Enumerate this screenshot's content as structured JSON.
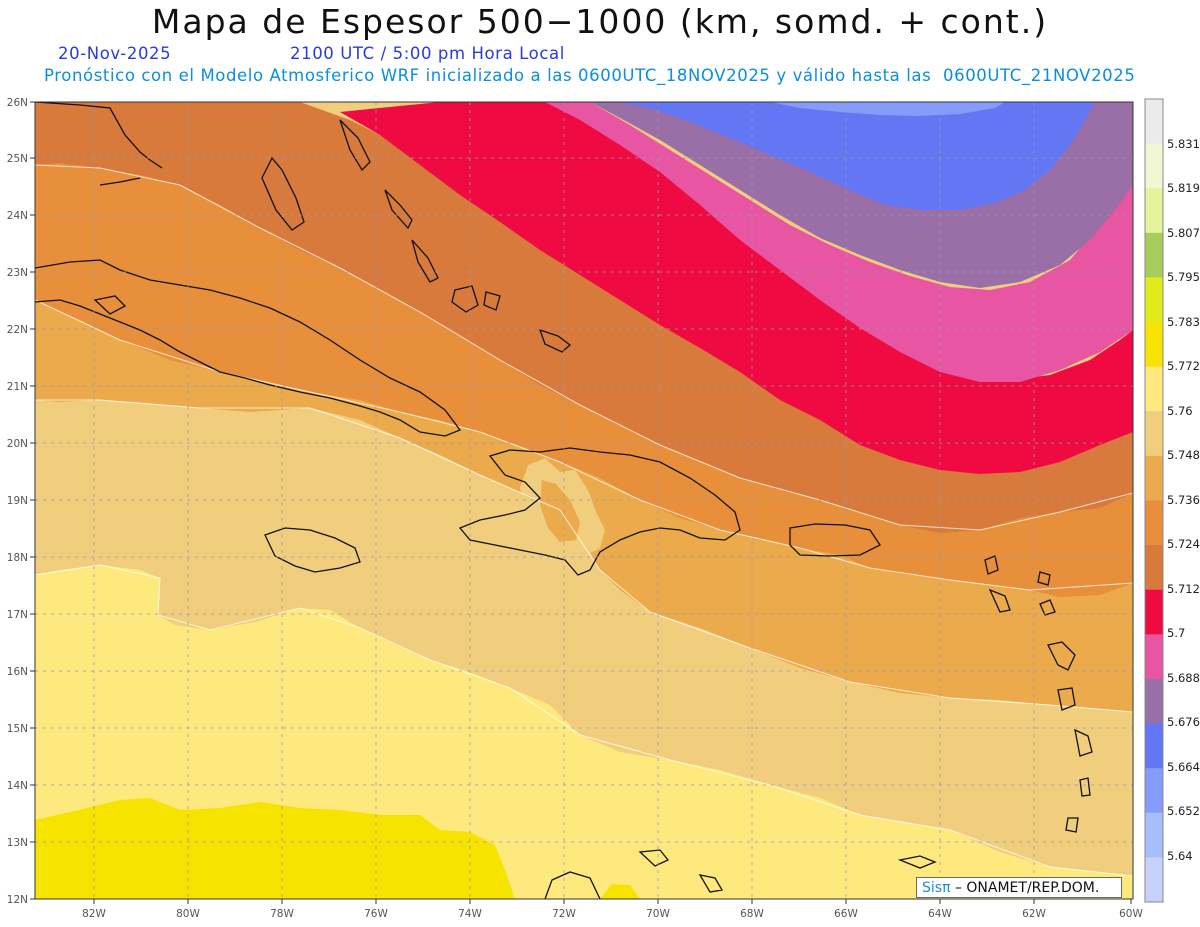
{
  "header": {
    "title": "Mapa de Espesor 500−1000 (km, somd. + cont.)",
    "date": "20-Nov-2025",
    "time": "2100 UTC / 5:00 pm Hora Local",
    "model_info": "Pronóstico con el Modelo Atmosferico WRF inicializado a las 0600UTC_18NOV2025 y válido hasta las  0600UTC_21NOV2025"
  },
  "axes": {
    "lat_labels": [
      "26N",
      "25N",
      "24N",
      "23N",
      "22N",
      "21N",
      "20N",
      "19N",
      "18N",
      "17N",
      "16N",
      "15N",
      "14N",
      "13N",
      "12N"
    ],
    "lon_labels": [
      "82W",
      "80W",
      "78W",
      "76W",
      "74W",
      "72W",
      "70W",
      "68W",
      "66W",
      "64W",
      "62W",
      "60W"
    ]
  },
  "colorbar": {
    "levels": [
      "5.831",
      "5.819",
      "5.807",
      "5.795",
      "5.783",
      "5.772",
      "5.76",
      "5.748",
      "5.736",
      "5.724",
      "5.712",
      "5.7",
      "5.688",
      "5.676",
      "5.664",
      "5.652",
      "5.64"
    ],
    "colors": [
      "#ebebeb",
      "#f3f6d2",
      "#e4f49c",
      "#a7cc5c",
      "#e3ea1c",
      "#f6e400",
      "#fde97d",
      "#f1cd7e",
      "#ebaa4b",
      "#e78f3a",
      "#d87a3b",
      "#ef0a42",
      "#e855a2",
      "#9a6ea6",
      "#6377f5",
      "#869cfb",
      "#a7befd",
      "#c7d2fb"
    ]
  },
  "legend": {
    "brand": "Sisπ",
    "org": "– ONAMET/REP.DOM."
  },
  "map_regions": [
    "Cuba",
    "Jamaica",
    "Hispaniola",
    "Puerto Rico",
    "Bahamas",
    "Lesser Antilles"
  ]
}
